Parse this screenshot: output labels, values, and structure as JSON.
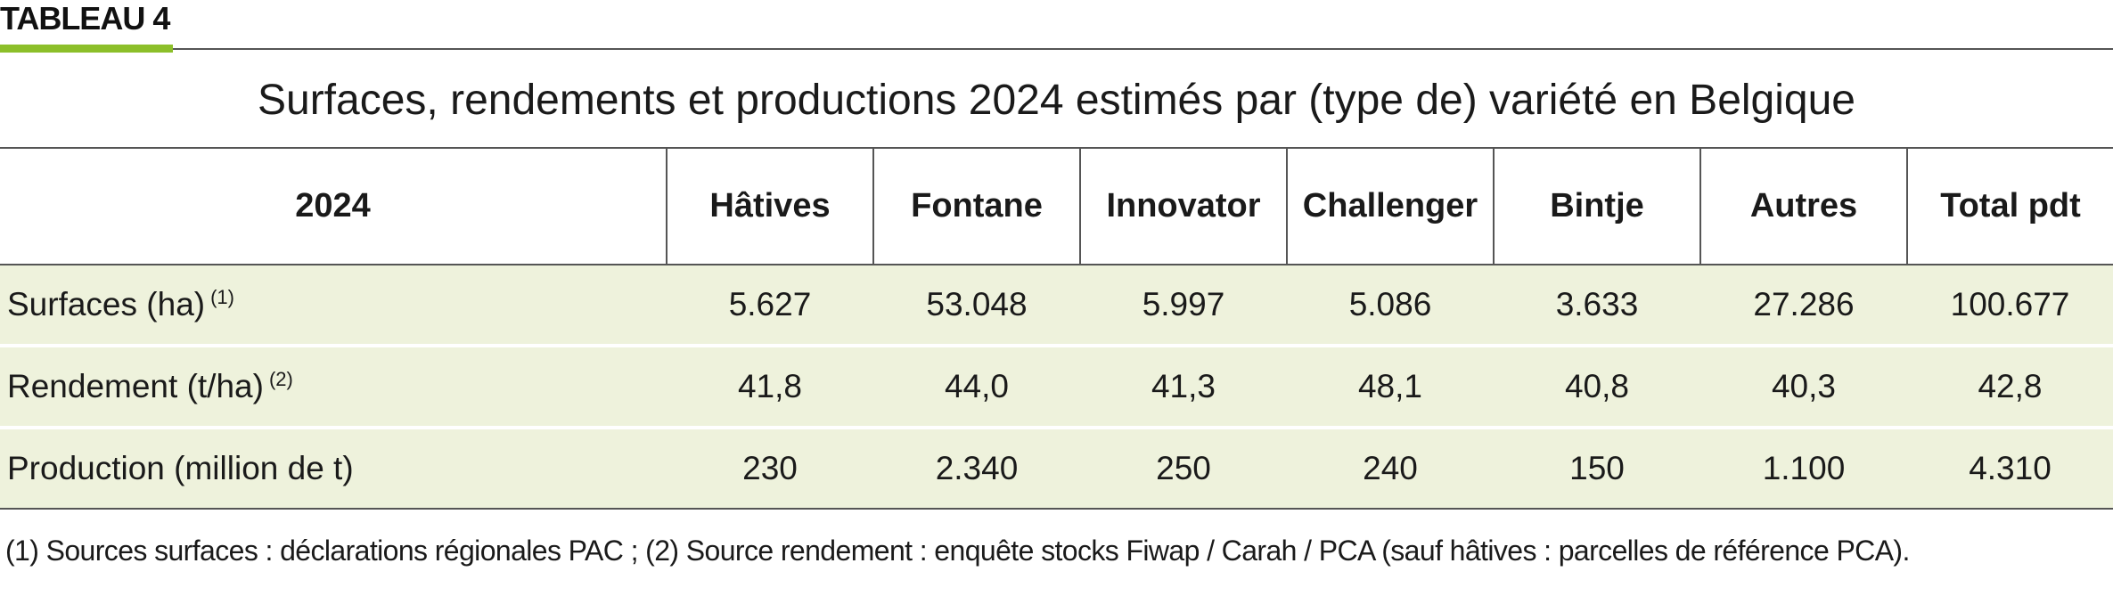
{
  "header": {
    "tag": "TABLEAU 4",
    "title": "Surfaces, rendements et productions 2024 estimés par (type de) variété en Belgique"
  },
  "colors": {
    "accent": "#8cbf2a",
    "row_background": "#eef2dc",
    "rule": "#555555"
  },
  "table": {
    "corner_label": "2024",
    "columns": [
      "Hâtives",
      "Fontane",
      "Innovator",
      "Challenger",
      "Bintje",
      "Autres",
      "Total pdt"
    ],
    "rows": [
      {
        "label": "Surfaces (ha)",
        "note": "(1)",
        "values": [
          "5.627",
          "53.048",
          "5.997",
          "5.086",
          "3.633",
          "27.286",
          "100.677"
        ]
      },
      {
        "label": "Rendement (t/ha)",
        "note": "(2)",
        "values": [
          "41,8",
          "44,0",
          "41,3",
          "48,1",
          "40,8",
          "40,3",
          "42,8"
        ]
      },
      {
        "label": "Production (million de t)",
        "note": "",
        "values": [
          "230",
          "2.340",
          "250",
          "240",
          "150",
          "1.100",
          "4.310"
        ]
      }
    ]
  },
  "footnote": "(1) Sources surfaces : déclarations régionales PAC ; (2) Source rendement : enquête stocks Fiwap / Carah / PCA (sauf hâtives : parcelles de référence PCA)."
}
